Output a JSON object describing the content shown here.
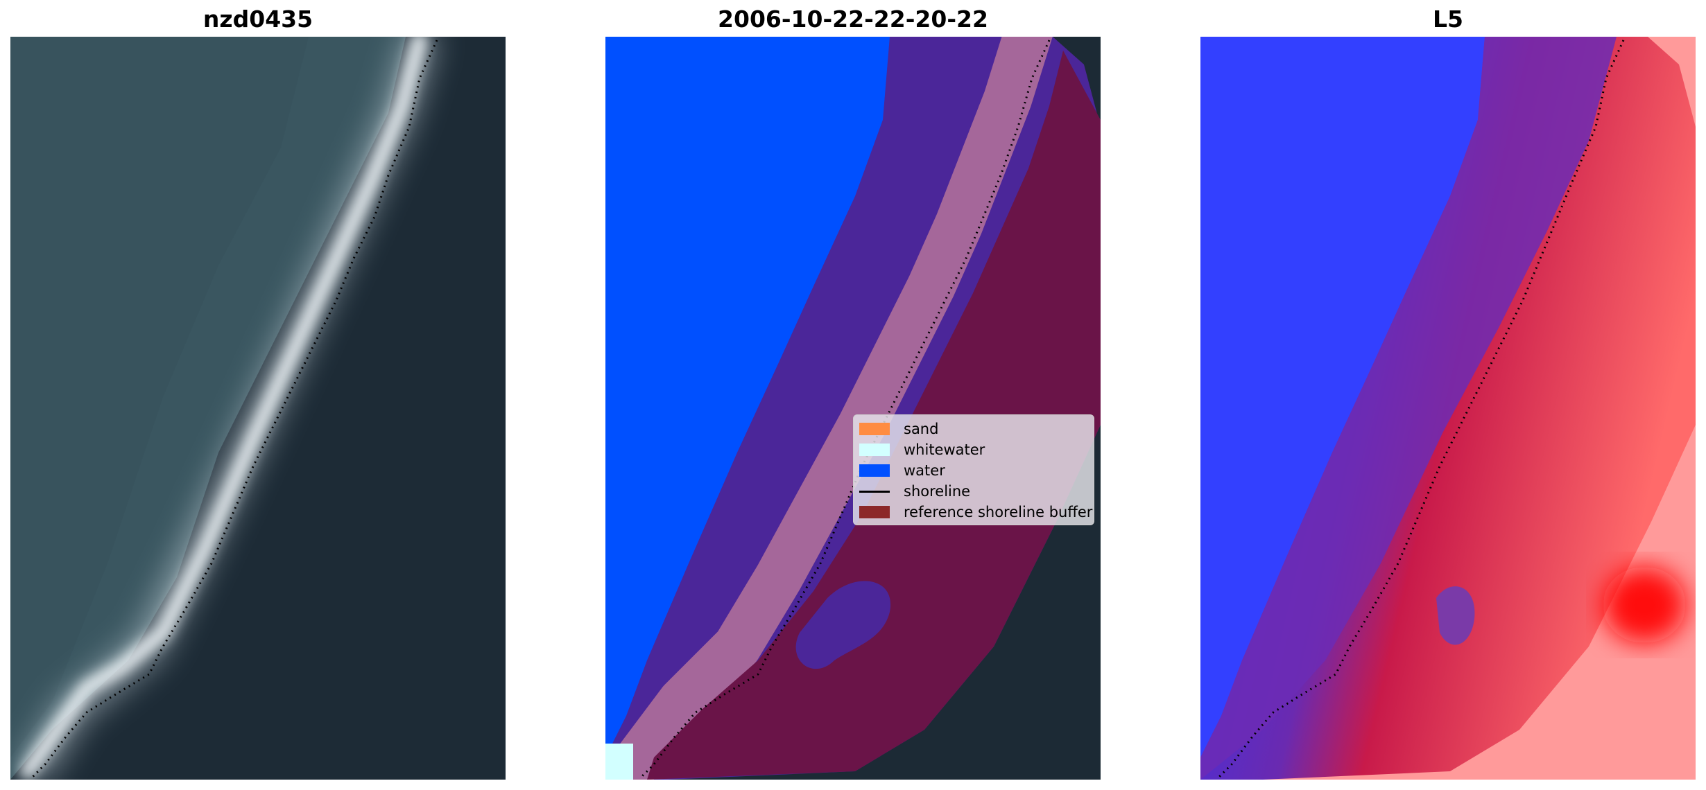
{
  "panels": {
    "image": {
      "title": "nzd0435"
    },
    "classification": {
      "title": "2006-10-22-22-20-22"
    },
    "index": {
      "title": "L5"
    }
  },
  "legend": {
    "items": [
      {
        "label": "sand",
        "color": "#ff8c42"
      },
      {
        "label": "whitewater",
        "color": "#d2ffff"
      },
      {
        "label": "water",
        "color": "#0050ff"
      },
      {
        "label": "shoreline",
        "color": "#000000"
      },
      {
        "label": "reference shoreline buffer",
        "color": "#8c2828"
      }
    ]
  },
  "colors": {
    "sea": "#3a5560",
    "land": "#1c2a35",
    "surf": "#d8e4ea",
    "water_class": "#0050ff",
    "buffer_water": "#4a2699",
    "buffer_whitewater": "#a5679a",
    "buffer_land": "#6a1448",
    "index_low": "#2020ff",
    "index_high": "#ff1a1a"
  }
}
